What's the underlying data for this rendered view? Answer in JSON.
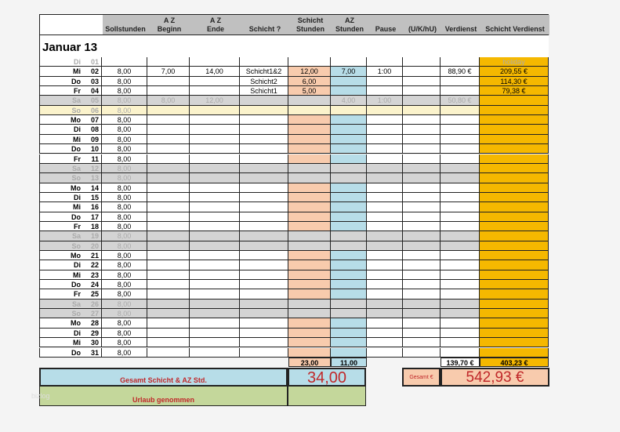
{
  "title": "Januar 13",
  "headers": [
    "",
    "Sollstunden",
    "A Z\nBeginn",
    "A Z\nEnde",
    "Schicht ?",
    "Schicht\nStunden",
    "AZ\nStunden",
    "Pause",
    "(U/K/hU)",
    "Verdienst",
    "Schicht Verdienst"
  ],
  "rows": [
    [
      "Di",
      "01",
      "",
      "",
      "",
      "",
      "",
      "",
      "",
      "",
      "",
      "holiday"
    ],
    [
      "Mi",
      "02",
      "8,00",
      "7,00",
      "14,00",
      "Schicht1&2",
      "12,00",
      "7,00",
      "1:00",
      "",
      "88,90 €",
      "209,55 €",
      "work"
    ],
    [
      "Do",
      "03",
      "8,00",
      "",
      "",
      "Schicht2",
      "6,00",
      "",
      "",
      "",
      "",
      "114,30 €",
      "work"
    ],
    [
      "Fr",
      "04",
      "8,00",
      "",
      "",
      "Schicht1",
      "5,00",
      "",
      "",
      "",
      "",
      "79,38 €",
      "work"
    ],
    [
      "Sa",
      "05",
      "8,00",
      "8,00",
      "12,00",
      "",
      "",
      "4,00",
      "1:00",
      "",
      "50,80 €",
      "",
      "weekend"
    ],
    [
      "So",
      "06",
      "8,00",
      "",
      "",
      "",
      "",
      "",
      "",
      "",
      "",
      "",
      "holiday"
    ],
    [
      "Mo",
      "07",
      "8,00",
      "",
      "",
      "",
      "",
      "",
      "",
      "",
      "",
      "",
      "work"
    ],
    [
      "Di",
      "08",
      "8,00",
      "",
      "",
      "",
      "",
      "",
      "",
      "",
      "",
      "",
      "work"
    ],
    [
      "Mi",
      "09",
      "8,00",
      "",
      "",
      "",
      "",
      "",
      "",
      "",
      "",
      "",
      "work"
    ],
    [
      "Do",
      "10",
      "8,00",
      "",
      "",
      "",
      "",
      "",
      "",
      "",
      "",
      "",
      "work"
    ],
    [
      "Fr",
      "11",
      "8,00",
      "",
      "",
      "",
      "",
      "",
      "",
      "",
      "",
      "",
      "work"
    ],
    [
      "Sa",
      "12",
      "8,00",
      "",
      "",
      "",
      "",
      "",
      "",
      "",
      "",
      "",
      "weekend"
    ],
    [
      "So",
      "13",
      "8,00",
      "",
      "",
      "",
      "",
      "",
      "",
      "",
      "",
      "",
      "weekend"
    ],
    [
      "Mo",
      "14",
      "8,00",
      "",
      "",
      "",
      "",
      "",
      "",
      "",
      "",
      "",
      "work"
    ],
    [
      "Di",
      "15",
      "8,00",
      "",
      "",
      "",
      "",
      "",
      "",
      "",
      "",
      "",
      "work"
    ],
    [
      "Mi",
      "16",
      "8,00",
      "",
      "",
      "",
      "",
      "",
      "",
      "",
      "",
      "",
      "work"
    ],
    [
      "Do",
      "17",
      "8,00",
      "",
      "",
      "",
      "",
      "",
      "",
      "",
      "",
      "",
      "work"
    ],
    [
      "Fr",
      "18",
      "8,00",
      "",
      "",
      "",
      "",
      "",
      "",
      "",
      "",
      "",
      "work"
    ],
    [
      "Sa",
      "19",
      "8,00",
      "",
      "",
      "",
      "",
      "",
      "",
      "",
      "",
      "",
      "weekend"
    ],
    [
      "So",
      "20",
      "8,00",
      "",
      "",
      "",
      "",
      "",
      "",
      "",
      "",
      "",
      "weekend"
    ],
    [
      "Mo",
      "21",
      "8,00",
      "",
      "",
      "",
      "",
      "",
      "",
      "",
      "",
      "",
      "work"
    ],
    [
      "Di",
      "22",
      "8,00",
      "",
      "",
      "",
      "",
      "",
      "",
      "",
      "",
      "",
      "work"
    ],
    [
      "Mi",
      "23",
      "8,00",
      "",
      "",
      "",
      "",
      "",
      "",
      "",
      "",
      "",
      "work"
    ],
    [
      "Do",
      "24",
      "8,00",
      "",
      "",
      "",
      "",
      "",
      "",
      "",
      "",
      "",
      "work"
    ],
    [
      "Fr",
      "25",
      "8,00",
      "",
      "",
      "",
      "",
      "",
      "",
      "",
      "",
      "",
      "work"
    ],
    [
      "Sa",
      "26",
      "8,00",
      "",
      "",
      "",
      "",
      "",
      "",
      "",
      "",
      "",
      "weekend"
    ],
    [
      "So",
      "27",
      "8,00",
      "",
      "",
      "",
      "",
      "",
      "",
      "",
      "",
      "",
      "weekend"
    ],
    [
      "Mo",
      "28",
      "8,00",
      "",
      "",
      "",
      "",
      "",
      "",
      "",
      "",
      "",
      "work"
    ],
    [
      "Di",
      "29",
      "8,00",
      "",
      "",
      "",
      "",
      "",
      "",
      "",
      "",
      "",
      "work"
    ],
    [
      "Mi",
      "30",
      "8,00",
      "",
      "",
      "",
      "",
      "",
      "",
      "",
      "",
      "",
      "work"
    ],
    [
      "Do",
      "31",
      "8,00",
      "",
      "",
      "",
      "",
      "",
      "",
      "",
      "",
      "",
      "work"
    ]
  ],
  "totals": {
    "schicht_stunden": "23,00",
    "az_stunden": "11,00",
    "verdienst": "139,70 €",
    "schicht_verdienst": "403,23 €"
  },
  "summary": {
    "gesamt_label": "Gesamt Schicht & AZ Std.",
    "gesamt_value": "34,00",
    "gesamt_euro_label": "Gesamt €",
    "gesamt_euro_value": "542,93 €",
    "urlaub_label": "Urlaub genommen"
  },
  "watermark": "bizlog",
  "colors": {
    "header": "#c0c0c0",
    "holiday": "#fbf3cc",
    "weekend": "#d4d4d4",
    "schicht": "#f8cbad",
    "az": "#b7dde8",
    "verdienst": "#f5b800",
    "gesamt": "#b7dde8",
    "urlaub": "#c4d79b",
    "red": "#c0282a"
  }
}
